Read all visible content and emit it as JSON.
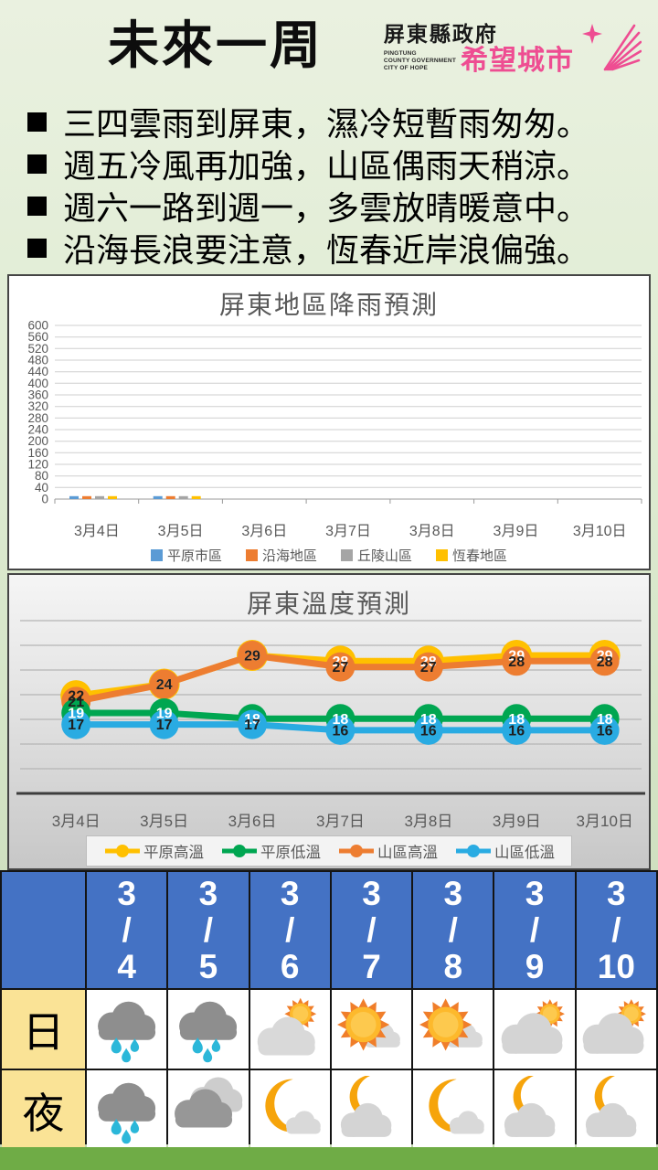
{
  "page": {
    "background_top": "#eaf1e0",
    "background_bottom": "#c3d6b2",
    "footer_bar_color": "#6FAC46",
    "accent_pink": "#EE4D92"
  },
  "header": {
    "title": "未來一周",
    "logo": {
      "org_name": "屏東縣政府",
      "subtitle_lines": [
        "PINGTUNG",
        "COUNTY GOVERNMENT",
        "CITY OF HOPE"
      ],
      "slogan": "希望城市"
    }
  },
  "bullets": [
    "三四雲雨到屏東，濕冷短暫雨匆匆。",
    "週五冷風再加強，山區偶雨天稍涼。",
    "週六一路到週一，多雲放晴暖意中。",
    "沿海長浪要注意，恆春近岸浪偏強。"
  ],
  "chart_data": [
    {
      "type": "bar",
      "title": "屏東地區降雨預測",
      "categories": [
        "3月4日",
        "3月5日",
        "3月6日",
        "3月7日",
        "3月8日",
        "3月9日",
        "3月10日"
      ],
      "series": [
        {
          "name": "平原市區",
          "color": "#5B9BD5",
          "values": [
            10,
            10,
            0,
            0,
            0,
            0,
            0
          ]
        },
        {
          "name": "沿海地區",
          "color": "#ED7D31",
          "values": [
            10,
            10,
            0,
            0,
            0,
            0,
            0
          ]
        },
        {
          "name": "丘陵山區",
          "color": "#A5A5A5",
          "values": [
            10,
            10,
            0,
            0,
            0,
            0,
            0
          ]
        },
        {
          "name": "恆春地區",
          "color": "#FFC000",
          "values": [
            10,
            10,
            0,
            0,
            0,
            0,
            0
          ]
        }
      ],
      "ylim": [
        0,
        600
      ],
      "ytick": 40,
      "grid": true,
      "legend_position": "bottom"
    },
    {
      "type": "line",
      "title": "屏東溫度預測",
      "categories": [
        "3月4日",
        "3月5日",
        "3月6日",
        "3月7日",
        "3月8日",
        "3月9日",
        "3月10日"
      ],
      "series": [
        {
          "name": "平原高溫",
          "color": "#FFC000",
          "values": [
            22,
            24,
            29,
            28,
            28,
            29,
            29
          ],
          "label_colors": [
            "#1f1f1f",
            "#ffffff",
            "#ffffff",
            "#ffffff",
            "#ffffff",
            "#ffffff",
            "#ffffff"
          ]
        },
        {
          "name": "平原低溫",
          "color": "#00A651",
          "values": [
            19,
            19,
            18,
            18,
            18,
            18,
            18
          ],
          "label_color": "#ffffff"
        },
        {
          "name": "山區高溫",
          "color": "#ED7D31",
          "values": [
            21,
            24,
            29,
            27,
            27,
            28,
            28
          ],
          "label_color": "#1f1f1f"
        },
        {
          "name": "山區低溫",
          "color": "#29ABE2",
          "values": [
            17,
            17,
            17,
            16,
            16,
            16,
            16
          ],
          "label_color": "#1f1f1f"
        }
      ],
      "draw_order": [
        0,
        2,
        1,
        3
      ],
      "grid": true,
      "legend_position": "bottom"
    }
  ],
  "forecast_table": {
    "header_bg": "#4472C4",
    "label_bg": "#FAE396",
    "dates": [
      "3/4",
      "3/5",
      "3/6",
      "3/7",
      "3/8",
      "3/9",
      "3/10"
    ],
    "rows": [
      {
        "label": "日",
        "icons": [
          "rain-cloud",
          "rain-cloud",
          "sun-behind-cloud",
          "sun-with-small-cloud",
          "sun-with-small-cloud",
          "cloud-with-sun-peek",
          "cloud-with-sun-peek"
        ]
      },
      {
        "label": "夜",
        "icons": [
          "rain-cloud",
          "clouds",
          "moon-with-small-cloud",
          "moon-with-cloud",
          "moon-with-small-cloud",
          "moon-with-cloud",
          "moon-with-cloud"
        ]
      }
    ]
  }
}
